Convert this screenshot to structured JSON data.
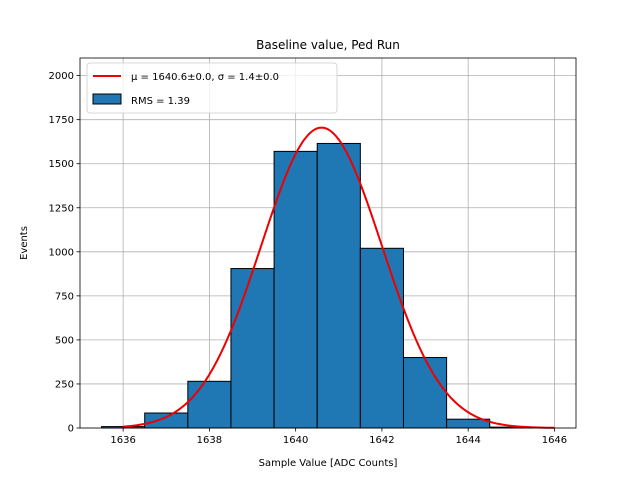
{
  "chart_data": {
    "type": "bar",
    "title": "Baseline value, Ped Run",
    "xlabel": "Sample Value [ADC Counts]",
    "ylabel": "Events",
    "xlim": [
      1635,
      1646.5
    ],
    "ylim": [
      0,
      2100
    ],
    "xticks": [
      1636,
      1638,
      1640,
      1642,
      1644,
      1646
    ],
    "yticks": [
      0,
      250,
      500,
      750,
      1000,
      1250,
      1500,
      1750,
      2000
    ],
    "grid": true,
    "legend_position": "top-left",
    "bins": [
      {
        "left": 1635.5,
        "right": 1636.5,
        "value": 8
      },
      {
        "left": 1636.5,
        "right": 1637.5,
        "value": 85
      },
      {
        "left": 1637.5,
        "right": 1638.5,
        "value": 265
      },
      {
        "left": 1638.5,
        "right": 1639.5,
        "value": 905
      },
      {
        "left": 1639.5,
        "right": 1640.5,
        "value": 1570
      },
      {
        "left": 1640.5,
        "right": 1641.5,
        "value": 1615
      },
      {
        "left": 1641.5,
        "right": 1642.5,
        "value": 1020
      },
      {
        "left": 1642.5,
        "right": 1643.5,
        "value": 400
      },
      {
        "left": 1643.5,
        "right": 1644.5,
        "value": 50
      },
      {
        "left": 1644.5,
        "right": 1645.5,
        "value": 5
      }
    ],
    "fit": {
      "type": "gaussian",
      "mu": 1640.6,
      "sigma": 1.4,
      "amplitude": 1705,
      "x_range": [
        1636,
        1646
      ]
    },
    "series": [
      {
        "name": "μ = 1640.6±0.0, σ = 1.4±0.0",
        "type": "line",
        "color": "#ee0000"
      },
      {
        "name": "RMS = 1.39",
        "type": "bar",
        "color": "#1f77b4"
      }
    ]
  }
}
